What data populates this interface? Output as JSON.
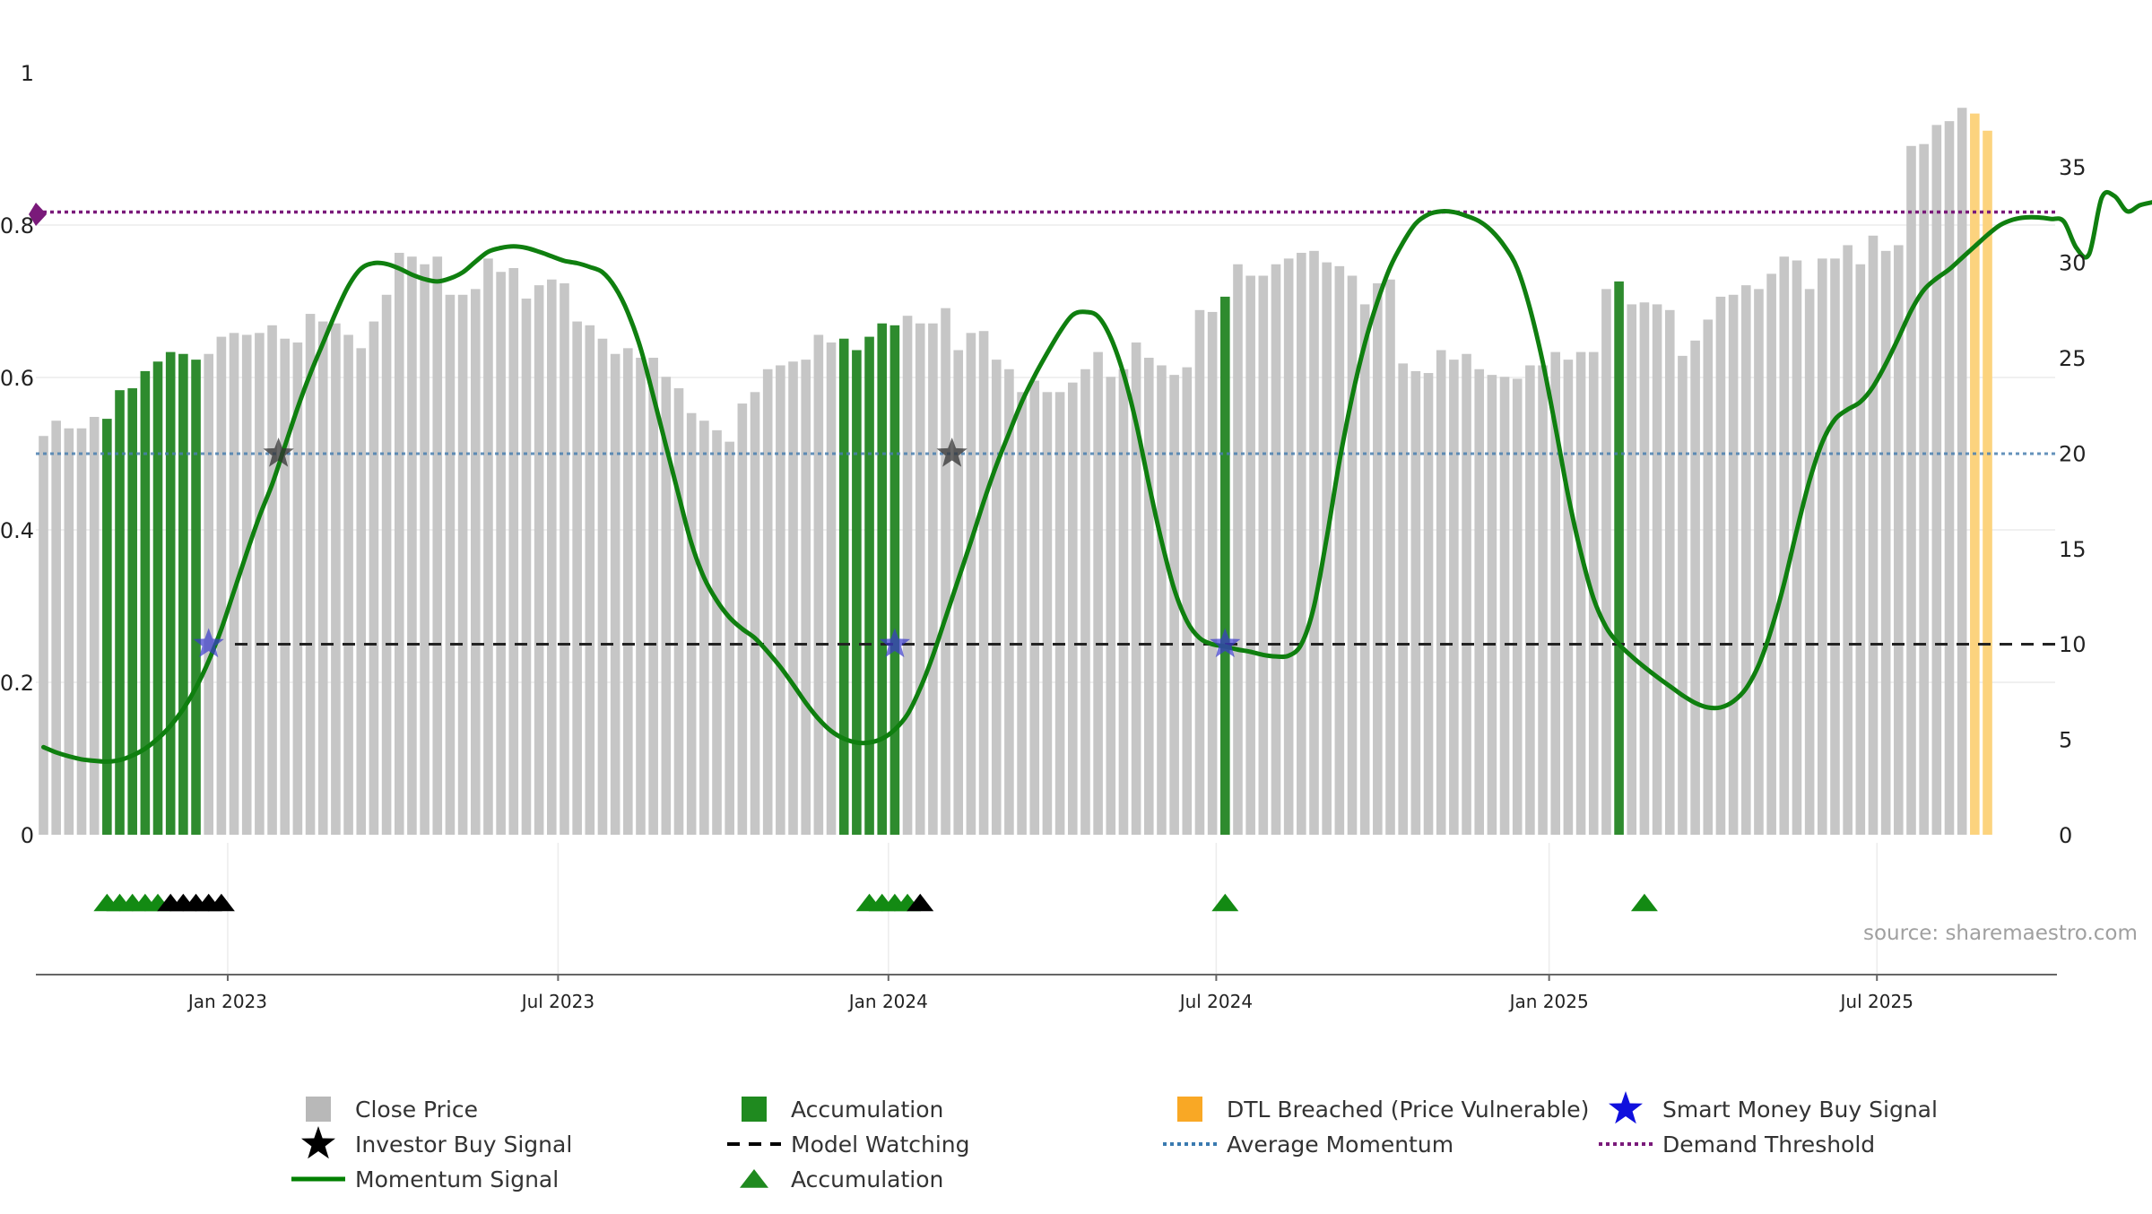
{
  "chart_data": {
    "type": "bar",
    "source_text": "source: sharemaestro.com",
    "left_axis": {
      "range": [
        0,
        1
      ],
      "ticks": [
        {
          "v": 0,
          "label": "0"
        },
        {
          "v": 0.2,
          "label": "0.2"
        },
        {
          "v": 0.4,
          "label": "0.4"
        },
        {
          "v": 0.6,
          "label": "0.6"
        },
        {
          "v": 0.8,
          "label": "0.8"
        },
        {
          "v": 1,
          "label": "1"
        }
      ]
    },
    "right_axis": {
      "range": [
        0,
        40
      ],
      "ticks": [
        {
          "v": 0,
          "label": "0"
        },
        {
          "v": 5,
          "label": "5"
        },
        {
          "v": 10,
          "label": "10"
        },
        {
          "v": 15,
          "label": "15"
        },
        {
          "v": 20,
          "label": "20"
        },
        {
          "v": 25,
          "label": "25"
        },
        {
          "v": 30,
          "label": "30"
        },
        {
          "v": 35,
          "label": "35"
        }
      ]
    },
    "x_ticks": [
      {
        "index": 14.5,
        "label": "Jan 2023"
      },
      {
        "index": 40.5,
        "label": "Jul 2023"
      },
      {
        "index": 66.5,
        "label": "Jan 2024"
      },
      {
        "index": 92.3,
        "label": "Jul 2024"
      },
      {
        "index": 118.5,
        "label": "Jan 2025"
      },
      {
        "index": 144.3,
        "label": "Jul 2025"
      }
    ],
    "grid": true,
    "legend_position": "bottom",
    "colors": {
      "close_price": "#c6c6c6",
      "accumulation": "#2e8b2e",
      "dtl": "#fcd37e",
      "momentum": "#0f7f0f",
      "average": "#4a7fb0",
      "demand": "#7a1a7a",
      "watching": "#222222",
      "smart_money": "#3a3acc",
      "investor": "#333333"
    },
    "bars": {
      "values": [
        20.9,
        21.7,
        21.3,
        21.3,
        21.9,
        21.8,
        23.3,
        23.4,
        24.3,
        24.8,
        25.3,
        25.2,
        24.9,
        25.2,
        26.1,
        26.3,
        26.2,
        26.3,
        26.7,
        26.0,
        25.8,
        27.3,
        26.9,
        26.8,
        26.2,
        25.5,
        26.9,
        28.3,
        30.5,
        30.3,
        29.9,
        30.3,
        28.3,
        28.3,
        28.6,
        30.2,
        29.5,
        29.7,
        28.1,
        28.8,
        29.1,
        28.9,
        26.9,
        26.7,
        26.0,
        25.2,
        25.5,
        25.0,
        25.0,
        24.0,
        23.4,
        22.1,
        21.7,
        21.2,
        20.6,
        22.6,
        23.2,
        24.4,
        24.6,
        24.8,
        24.9,
        26.2,
        25.8,
        26.0,
        25.4,
        26.1,
        26.8,
        26.7,
        27.2,
        26.8,
        26.8,
        27.6,
        25.4,
        26.3,
        26.4,
        24.9,
        24.4,
        23.2,
        23.8,
        23.2,
        23.2,
        23.7,
        24.4,
        25.3,
        24.0,
        24.4,
        25.8,
        25.0,
        24.6,
        24.1,
        24.5,
        27.5,
        27.4,
        28.2,
        29.9,
        29.3,
        29.3,
        29.9,
        30.2,
        30.5,
        30.6,
        30.0,
        29.8,
        29.3,
        27.8,
        28.9,
        29.1,
        24.7,
        24.3,
        24.2,
        25.4,
        24.9,
        25.2,
        24.4,
        24.1,
        24.0,
        23.9,
        24.6,
        24.6,
        25.3,
        24.9,
        25.3,
        25.3,
        28.6,
        29.0,
        27.8,
        27.9,
        27.8,
        27.5,
        25.1,
        25.9,
        27.0,
        28.2,
        28.3,
        28.8,
        28.6,
        29.4,
        30.3,
        30.1,
        28.6,
        30.2,
        30.2,
        30.9,
        29.9,
        31.4,
        30.6,
        30.9,
        36.1,
        36.2,
        37.2,
        37.4,
        38.1,
        37.8,
        36.9
      ],
      "accumulation_indices": [
        5,
        6,
        7,
        8,
        9,
        10,
        11,
        12,
        63,
        64,
        65,
        66,
        67,
        93,
        124
      ],
      "dtl_start_index": 152
    },
    "momentum": {
      "points": [
        [
          0,
          0.115
        ],
        [
          1,
          0.108
        ],
        [
          2,
          0.103
        ],
        [
          3,
          0.099
        ],
        [
          4,
          0.097
        ],
        [
          5,
          0.096
        ],
        [
          6,
          0.098
        ],
        [
          7,
          0.104
        ],
        [
          8,
          0.113
        ],
        [
          9,
          0.126
        ],
        [
          10,
          0.143
        ],
        [
          11,
          0.165
        ],
        [
          12,
          0.193
        ],
        [
          13,
          0.228
        ],
        [
          14,
          0.27
        ],
        [
          15,
          0.32
        ],
        [
          16,
          0.37
        ],
        [
          17,
          0.418
        ],
        [
          18,
          0.46
        ],
        [
          19,
          0.51
        ],
        [
          20,
          0.56
        ],
        [
          21,
          0.605
        ],
        [
          22,
          0.645
        ],
        [
          23,
          0.685
        ],
        [
          24,
          0.72
        ],
        [
          25,
          0.743
        ],
        [
          26,
          0.75
        ],
        [
          27,
          0.749
        ],
        [
          28,
          0.743
        ],
        [
          29,
          0.735
        ],
        [
          30,
          0.729
        ],
        [
          31,
          0.726
        ],
        [
          32,
          0.73
        ],
        [
          33,
          0.738
        ],
        [
          34,
          0.752
        ],
        [
          35,
          0.765
        ],
        [
          36,
          0.77
        ],
        [
          37,
          0.772
        ],
        [
          38,
          0.77
        ],
        [
          39,
          0.765
        ],
        [
          40,
          0.759
        ],
        [
          41,
          0.753
        ],
        [
          42,
          0.75
        ],
        [
          43,
          0.745
        ],
        [
          44,
          0.738
        ],
        [
          45,
          0.718
        ],
        [
          46,
          0.685
        ],
        [
          47,
          0.638
        ],
        [
          48,
          0.575
        ],
        [
          49,
          0.51
        ],
        [
          50,
          0.445
        ],
        [
          51,
          0.382
        ],
        [
          52,
          0.337
        ],
        [
          53,
          0.307
        ],
        [
          54,
          0.285
        ],
        [
          55,
          0.27
        ],
        [
          56,
          0.258
        ],
        [
          57,
          0.24
        ],
        [
          58,
          0.22
        ],
        [
          59,
          0.197
        ],
        [
          60,
          0.173
        ],
        [
          61,
          0.152
        ],
        [
          62,
          0.136
        ],
        [
          63,
          0.126
        ],
        [
          64,
          0.121
        ],
        [
          65,
          0.121
        ],
        [
          66,
          0.126
        ],
        [
          67,
          0.138
        ],
        [
          68,
          0.158
        ],
        [
          69,
          0.192
        ],
        [
          70,
          0.235
        ],
        [
          71,
          0.285
        ],
        [
          72,
          0.335
        ],
        [
          73,
          0.385
        ],
        [
          74,
          0.437
        ],
        [
          75,
          0.485
        ],
        [
          76,
          0.527
        ],
        [
          77,
          0.568
        ],
        [
          78,
          0.602
        ],
        [
          79,
          0.632
        ],
        [
          80,
          0.66
        ],
        [
          81,
          0.682
        ],
        [
          82,
          0.686
        ],
        [
          83,
          0.68
        ],
        [
          84,
          0.652
        ],
        [
          85,
          0.605
        ],
        [
          86,
          0.54
        ],
        [
          87,
          0.46
        ],
        [
          88,
          0.385
        ],
        [
          89,
          0.322
        ],
        [
          90,
          0.28
        ],
        [
          91,
          0.258
        ],
        [
          92,
          0.25
        ],
        [
          93,
          0.247
        ],
        [
          94,
          0.243
        ],
        [
          95,
          0.24
        ],
        [
          96,
          0.236
        ],
        [
          97,
          0.234
        ],
        [
          98,
          0.235
        ],
        [
          99,
          0.25
        ],
        [
          100,
          0.3
        ],
        [
          101,
          0.39
        ],
        [
          102,
          0.49
        ],
        [
          103,
          0.575
        ],
        [
          104,
          0.645
        ],
        [
          105,
          0.7
        ],
        [
          106,
          0.745
        ],
        [
          107,
          0.777
        ],
        [
          108,
          0.802
        ],
        [
          109,
          0.814
        ],
        [
          110,
          0.818
        ],
        [
          111,
          0.817
        ],
        [
          112,
          0.812
        ],
        [
          113,
          0.805
        ],
        [
          114,
          0.792
        ],
        [
          115,
          0.772
        ],
        [
          116,
          0.743
        ],
        [
          117,
          0.69
        ],
        [
          118,
          0.62
        ],
        [
          119,
          0.535
        ],
        [
          120,
          0.445
        ],
        [
          121,
          0.37
        ],
        [
          122,
          0.31
        ],
        [
          123,
          0.272
        ],
        [
          124,
          0.25
        ],
        [
          125,
          0.234
        ],
        [
          126,
          0.22
        ],
        [
          127,
          0.207
        ],
        [
          128,
          0.195
        ],
        [
          129,
          0.183
        ],
        [
          130,
          0.173
        ],
        [
          131,
          0.167
        ],
        [
          132,
          0.167
        ],
        [
          133,
          0.175
        ],
        [
          134,
          0.192
        ],
        [
          135,
          0.223
        ],
        [
          136,
          0.27
        ],
        [
          137,
          0.33
        ],
        [
          138,
          0.4
        ],
        [
          139,
          0.465
        ],
        [
          140,
          0.515
        ],
        [
          141,
          0.545
        ],
        [
          142,
          0.558
        ],
        [
          143,
          0.568
        ],
        [
          144,
          0.588
        ],
        [
          145,
          0.618
        ],
        [
          146,
          0.652
        ],
        [
          147,
          0.688
        ],
        [
          148,
          0.715
        ],
        [
          149,
          0.73
        ],
        [
          150,
          0.742
        ],
        [
          151,
          0.757
        ],
        [
          152,
          0.772
        ],
        [
          153,
          0.787
        ],
        [
          154,
          0.8
        ],
        [
          155,
          0.807
        ],
        [
          156,
          0.81
        ],
        [
          157,
          0.81
        ],
        [
          158,
          0.808
        ],
        [
          159,
          0.805
        ],
        [
          160,
          0.77
        ],
        [
          161,
          0.762
        ],
        [
          162,
          0.836
        ],
        [
          163,
          0.838
        ],
        [
          164,
          0.818
        ],
        [
          165,
          0.826
        ],
        [
          166,
          0.83
        ]
      ]
    },
    "reference_lines": {
      "demand_threshold": 0.817,
      "average_momentum": 0.5,
      "model_watching": 0.25
    },
    "smart_money_signals": [
      [
        13,
        0.25
      ],
      [
        67,
        0.25
      ],
      [
        93,
        0.25
      ]
    ],
    "investor_signals": [
      [
        18.5,
        0.5
      ],
      [
        71.5,
        0.5
      ]
    ],
    "accumulation_triangles": {
      "green": [
        5,
        6,
        7,
        8,
        9,
        65,
        66,
        67,
        68,
        93,
        126
      ],
      "black": [
        10,
        11,
        12,
        13,
        14,
        69
      ]
    },
    "legend": [
      {
        "label": "Close Price",
        "symbol": "square",
        "color": "#b8b8b8"
      },
      {
        "label": "Accumulation",
        "symbol": "square",
        "color": "#1f8a1f"
      },
      {
        "label": "DTL Breached (Price Vulnerable)",
        "symbol": "square",
        "color": "#f9a825"
      },
      {
        "label": "Smart Money Buy Signal",
        "symbol": "star",
        "color": "#1010dd"
      },
      {
        "label": "Investor Buy Signal",
        "symbol": "star",
        "color": "#000000"
      },
      {
        "label": "Model Watching",
        "symbol": "dash",
        "color": "#000000"
      },
      {
        "label": "Average Momentum",
        "symbol": "dot",
        "color": "#3a7ab0"
      },
      {
        "label": "Demand Threshold",
        "symbol": "dot",
        "color": "#7a1a7a"
      },
      {
        "label": "Momentum Signal",
        "symbol": "line",
        "color": "#008000"
      },
      {
        "label": "Accumulation",
        "symbol": "triangle",
        "color": "#1f8a1f"
      }
    ]
  }
}
